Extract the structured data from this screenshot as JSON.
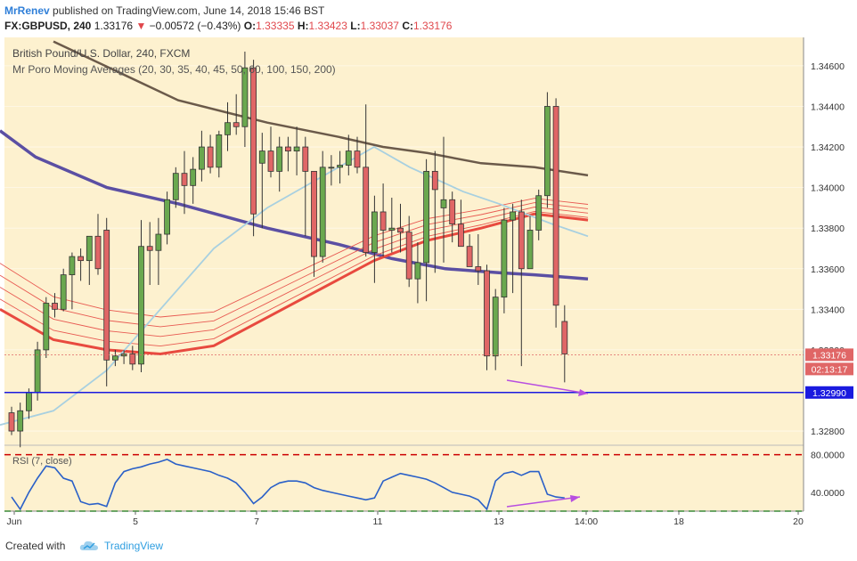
{
  "header": {
    "author": "MrRenev",
    "published_text": "published on TradingView.com, June 14, 2018 15:46 BST",
    "symbol": "FX:GBPUSD, 240",
    "last": "1.33176",
    "change": "−0.00572 (−0.43%)",
    "o_label": "O:",
    "o_value": "1.33335",
    "h_label": "H:",
    "h_value": "1.33423",
    "l_label": "L:",
    "l_value": "1.33037",
    "c_label": "C:",
    "c_value": "1.33176"
  },
  "chart_legend": {
    "title": "British Pound/U.S. Dollar, 240, FXCM",
    "study": "Mr Poro Moving Averages (20, 30, 35, 40, 45, 50, 60, 100, 150, 200)",
    "rsi": "RSI (7, close)"
  },
  "colors": {
    "background": "#fdf1cf",
    "up_candle": "#6aa84f",
    "down_candle": "#e06666",
    "ma_thin": "#e85a52",
    "ma_thick": "#e84a3f",
    "ma_light_blue": "#a8d0e0",
    "ma_navy": "#5b4fa3",
    "ma_brown": "#6b5a4a",
    "support_line": "#1a1adf",
    "divergence_arrow": "#b84ee0",
    "rsi_line": "#2a60c8",
    "rsi_upper": "#cc0000",
    "rsi_lower": "#3a8a3a"
  },
  "chart_data": [
    {
      "type": "candlestick",
      "title": "British Pound/U.S. Dollar, 240, FXCM",
      "x_tick_labels": [
        "Jun",
        "5",
        "7",
        "11",
        "13",
        "14:00",
        "18",
        "20"
      ],
      "y_tick_labels": [
        "1.34600",
        "1.34400",
        "1.34200",
        "1.34000",
        "1.33800",
        "1.33600",
        "1.33400",
        "1.33200",
        "1.32800"
      ],
      "ylim": [
        1.3273,
        1.3474
      ],
      "price_labels": {
        "last": "1.33176",
        "countdown": "02:13:17",
        "support": "1.32990"
      },
      "support_level": 1.3299,
      "candles_ohlc": [
        [
          1.3289,
          1.3292,
          1.3278,
          1.328
        ],
        [
          1.328,
          1.3294,
          1.3272,
          1.329
        ],
        [
          1.329,
          1.3301,
          1.3286,
          1.3299
        ],
        [
          1.3299,
          1.3324,
          1.3295,
          1.332
        ],
        [
          1.332,
          1.3346,
          1.3316,
          1.3343
        ],
        [
          1.3343,
          1.3348,
          1.3336,
          1.334
        ],
        [
          1.334,
          1.336,
          1.3339,
          1.3357
        ],
        [
          1.3357,
          1.3368,
          1.334,
          1.3366
        ],
        [
          1.3366,
          1.337,
          1.3354,
          1.3364
        ],
        [
          1.3364,
          1.3376,
          1.3352,
          1.3376
        ],
        [
          1.3376,
          1.3387,
          1.3357,
          1.336
        ],
        [
          1.3379,
          1.3385,
          1.3302,
          1.3315
        ],
        [
          1.3315,
          1.332,
          1.3312,
          1.3317
        ],
        [
          1.3317,
          1.332,
          1.3313,
          1.3318
        ],
        [
          1.3318,
          1.3322,
          1.331,
          1.3313
        ],
        [
          1.3313,
          1.3384,
          1.3309,
          1.3371
        ],
        [
          1.3371,
          1.3383,
          1.3352,
          1.3369
        ],
        [
          1.3369,
          1.3385,
          1.3352,
          1.3377
        ],
        [
          1.3377,
          1.3398,
          1.3372,
          1.3394
        ],
        [
          1.3394,
          1.341,
          1.339,
          1.3407
        ],
        [
          1.3407,
          1.3418,
          1.3387,
          1.3401
        ],
        [
          1.3401,
          1.3415,
          1.3392,
          1.3409
        ],
        [
          1.3409,
          1.3428,
          1.3403,
          1.342
        ],
        [
          1.342,
          1.3426,
          1.3407,
          1.341
        ],
        [
          1.341,
          1.3428,
          1.3405,
          1.3426
        ],
        [
          1.3426,
          1.3442,
          1.3418,
          1.3432
        ],
        [
          1.3432,
          1.3446,
          1.3426,
          1.343
        ],
        [
          1.343,
          1.3467,
          1.342,
          1.3459
        ],
        [
          1.3459,
          1.3463,
          1.3376,
          1.3387
        ],
        [
          1.3412,
          1.3427,
          1.338,
          1.3418
        ],
        [
          1.3418,
          1.343,
          1.3405,
          1.3408
        ],
        [
          1.3408,
          1.3425,
          1.3398,
          1.342
        ],
        [
          1.342,
          1.3425,
          1.3408,
          1.3418
        ],
        [
          1.3418,
          1.343,
          1.3406,
          1.342
        ],
        [
          1.342,
          1.3425,
          1.3376,
          1.3408
        ],
        [
          1.3408,
          1.3396,
          1.3356,
          1.3366
        ],
        [
          1.3366,
          1.3418,
          1.3363,
          1.341
        ],
        [
          1.341,
          1.3416,
          1.3401,
          1.341
        ],
        [
          1.341,
          1.3418,
          1.3402,
          1.3411
        ],
        [
          1.3411,
          1.3426,
          1.3406,
          1.3418
        ],
        [
          1.3418,
          1.3425,
          1.3407,
          1.341
        ],
        [
          1.341,
          1.3441,
          1.3366,
          1.3368
        ],
        [
          1.3368,
          1.3396,
          1.3353,
          1.3388
        ],
        [
          1.3388,
          1.3402,
          1.3366,
          1.3379
        ],
        [
          1.3379,
          1.3395,
          1.3368,
          1.338
        ],
        [
          1.338,
          1.3392,
          1.3368,
          1.3378
        ],
        [
          1.3378,
          1.3386,
          1.3351,
          1.3355
        ],
        [
          1.3355,
          1.3373,
          1.3343,
          1.3363
        ],
        [
          1.3363,
          1.3414,
          1.3344,
          1.3408
        ],
        [
          1.3408,
          1.3418,
          1.3358,
          1.3399
        ],
        [
          1.339,
          1.3425,
          1.3363,
          1.3394
        ],
        [
          1.3394,
          1.3398,
          1.3373,
          1.3382
        ],
        [
          1.3382,
          1.3394,
          1.3371,
          1.3371
        ],
        [
          1.3371,
          1.3377,
          1.3366,
          1.3361
        ],
        [
          1.3361,
          1.3377,
          1.3352,
          1.3359
        ],
        [
          1.3359,
          1.3362,
          1.331,
          1.3317
        ],
        [
          1.3317,
          1.335,
          1.331,
          1.3346
        ],
        [
          1.3346,
          1.339,
          1.3338,
          1.3384
        ],
        [
          1.3384,
          1.3392,
          1.3348,
          1.3388
        ],
        [
          1.3388,
          1.3394,
          1.3312,
          1.336
        ],
        [
          1.336,
          1.3386,
          1.3368,
          1.3379
        ],
        [
          1.3379,
          1.3399,
          1.3374,
          1.3396
        ],
        [
          1.3396,
          1.3447,
          1.339,
          1.344
        ],
        [
          1.344,
          1.3444,
          1.3331,
          1.3342
        ],
        [
          1.3334,
          1.3342,
          1.3304,
          1.3318
        ]
      ],
      "moving_averages": [
        {
          "role": "navy",
          "values": [
            [
              0,
              1.3428
            ],
            [
              40,
              1.3415
            ],
            [
              120,
              1.34
            ],
            [
              200,
              1.3392
            ],
            [
              300,
              1.338
            ],
            [
              380,
              1.3372
            ],
            [
              440,
              1.3365
            ],
            [
              500,
              1.336
            ],
            [
              560,
              1.3358
            ],
            [
              600,
              1.3357
            ],
            [
              630,
              1.3356
            ],
            [
              660,
              1.3355
            ]
          ]
        },
        {
          "role": "brown",
          "values": [
            [
              60,
              1.3472
            ],
            [
              200,
              1.3443
            ],
            [
              300,
              1.3432
            ],
            [
              380,
              1.3425
            ],
            [
              430,
              1.342
            ],
            [
              480,
              1.3417
            ],
            [
              540,
              1.3412
            ],
            [
              600,
              1.341
            ],
            [
              660,
              1.3406
            ]
          ]
        },
        {
          "role": "thick-red",
          "values": [
            [
              0,
              1.334
            ],
            [
              60,
              1.3325
            ],
            [
              120,
              1.332
            ],
            [
              180,
              1.3318
            ],
            [
              240,
              1.3322
            ],
            [
              300,
              1.3336
            ],
            [
              360,
              1.335
            ],
            [
              420,
              1.3364
            ],
            [
              480,
              1.3374
            ],
            [
              540,
              1.338
            ],
            [
              600,
              1.3387
            ],
            [
              660,
              1.3384
            ]
          ]
        },
        {
          "role": "light-blue",
          "values": [
            [
              0,
              1.3283
            ],
            [
              60,
              1.329
            ],
            [
              120,
              1.331
            ],
            [
              180,
              1.334
            ],
            [
              240,
              1.337
            ],
            [
              300,
              1.339
            ],
            [
              340,
              1.34
            ],
            [
              380,
              1.341
            ],
            [
              420,
              1.342
            ],
            [
              460,
              1.341
            ],
            [
              520,
              1.3398
            ],
            [
              560,
              1.3392
            ],
            [
              620,
              1.3382
            ],
            [
              660,
              1.3376
            ]
          ]
        }
      ]
    },
    {
      "type": "line",
      "title": "RSI (7, close)",
      "y_tick_labels": [
        "80.0000",
        "40.0000"
      ],
      "ylim": [
        20,
        90
      ],
      "levels": [
        80,
        20
      ],
      "values": [
        35,
        22,
        40,
        55,
        68,
        66,
        55,
        52,
        30,
        27,
        28,
        25,
        50,
        62,
        65,
        67,
        70,
        72,
        75,
        70,
        68,
        66,
        64,
        62,
        58,
        55,
        50,
        40,
        28,
        35,
        45,
        50,
        52,
        52,
        50,
        45,
        42,
        40,
        38,
        36,
        34,
        32,
        34,
        52,
        56,
        60,
        58,
        56,
        54,
        50,
        45,
        40,
        38,
        36,
        32,
        22,
        52,
        60,
        62,
        58,
        62,
        62,
        38,
        35,
        34
      ]
    }
  ]
}
